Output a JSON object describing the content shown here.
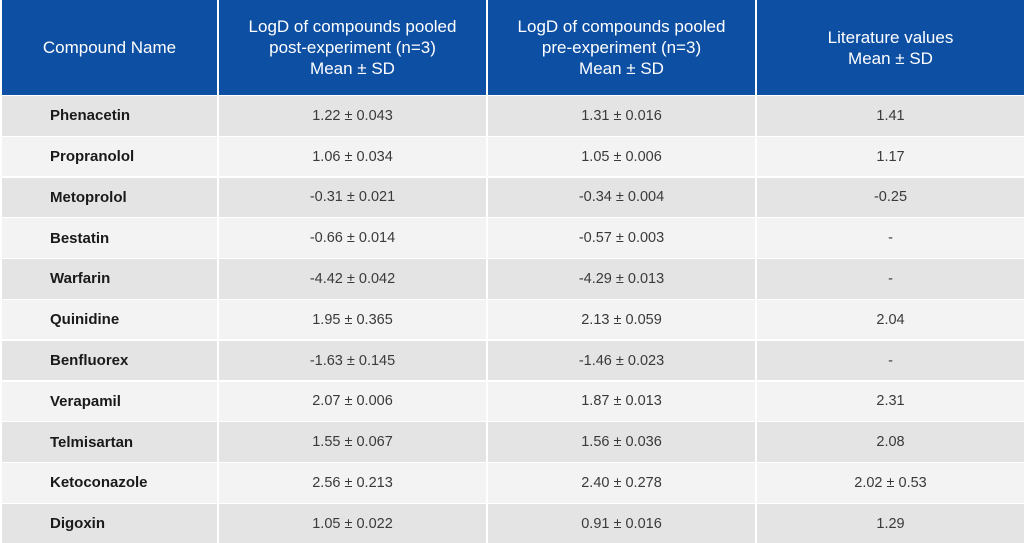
{
  "headers": [
    [
      "Compound Name"
    ],
    [
      "LogD of compounds pooled",
      "post-experiment (n=3)",
      "Mean ± SD"
    ],
    [
      "LogD of compounds pooled",
      "pre-experiment (n=3)",
      "Mean ± SD"
    ],
    [
      "Literature values",
      "Mean ± SD"
    ]
  ],
  "rows": [
    [
      "Phenacetin",
      "1.22 ± 0.043",
      "1.31 ± 0.016",
      "1.41"
    ],
    [
      "Propranolol",
      "1.06 ± 0.034",
      "1.05 ± 0.006",
      "1.17"
    ],
    [
      "Metoprolol",
      "-0.31 ± 0.021",
      "-0.34 ± 0.004",
      "-0.25"
    ],
    [
      "Bestatin",
      "-0.66 ± 0.014",
      "-0.57 ± 0.003",
      "-"
    ],
    [
      "Warfarin",
      "-4.42 ± 0.042",
      "-4.29 ± 0.013",
      "-"
    ],
    [
      "Quinidine",
      "1.95 ± 0.365",
      "2.13 ± 0.059",
      "2.04"
    ],
    [
      "Benfluorex",
      "-1.63 ± 0.145",
      "-1.46 ± 0.023",
      "-"
    ],
    [
      "Verapamil",
      "2.07 ± 0.006",
      "1.87 ± 0.013",
      "2.31"
    ],
    [
      "Telmisartan",
      "1.55 ± 0.067",
      "1.56 ± 0.036",
      "2.08"
    ],
    [
      "Ketoconazole",
      "2.56 ± 0.213",
      "2.40 ± 0.278",
      "2.02 ± 0.53"
    ],
    [
      "Digoxin",
      "1.05 ± 0.022",
      "0.91 ± 0.016",
      "1.29"
    ]
  ],
  "colors": {
    "header_bg": "#0d4fa3",
    "row_odd": "#e4e4e4",
    "row_even": "#f3f3f3"
  }
}
